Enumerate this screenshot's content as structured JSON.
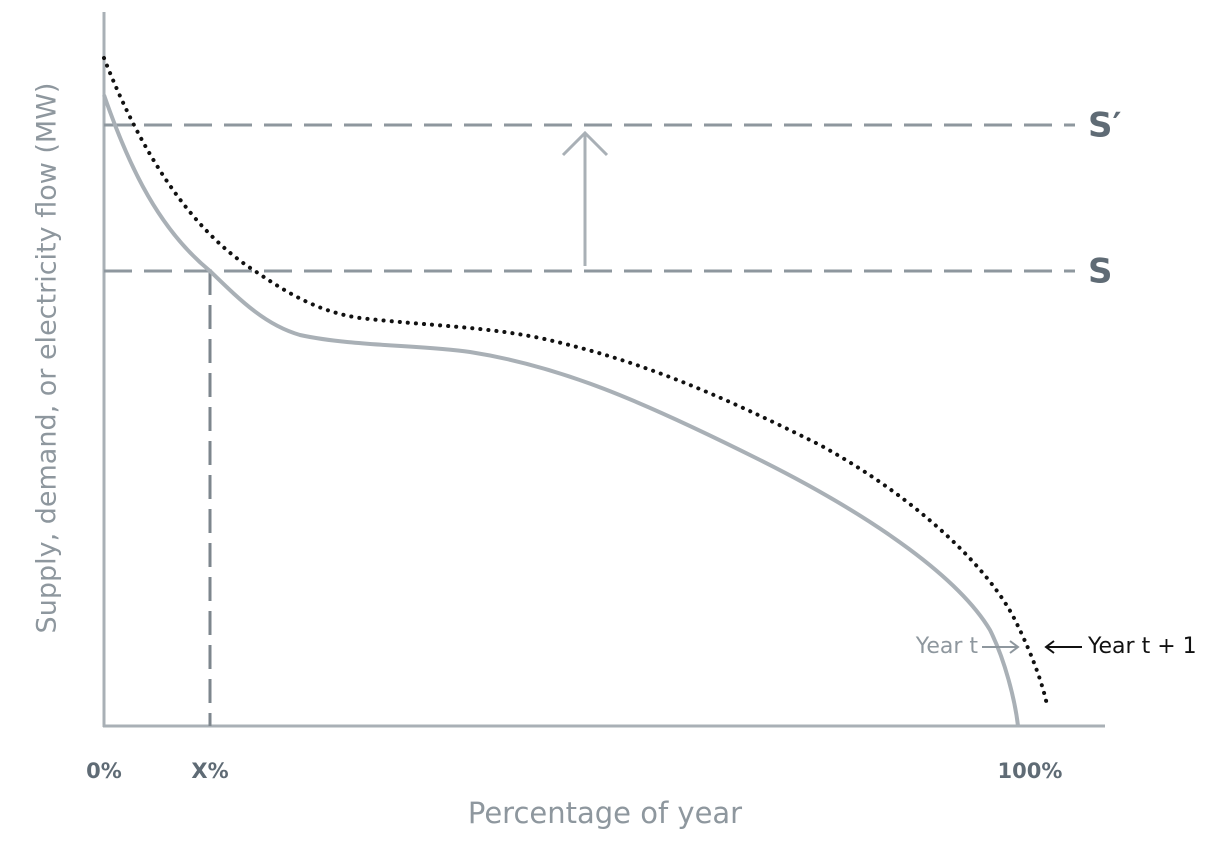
{
  "axes": {
    "y_label": "Supply, demand, or electricity flow (MW)",
    "x_label": "Percentage of year",
    "x_ticks": [
      "0%",
      "X%",
      "100%"
    ]
  },
  "lines": [
    {
      "label": "S′"
    },
    {
      "label": "S"
    }
  ],
  "curves": [
    {
      "label": "Year t"
    },
    {
      "label": "Year t + 1"
    }
  ]
}
